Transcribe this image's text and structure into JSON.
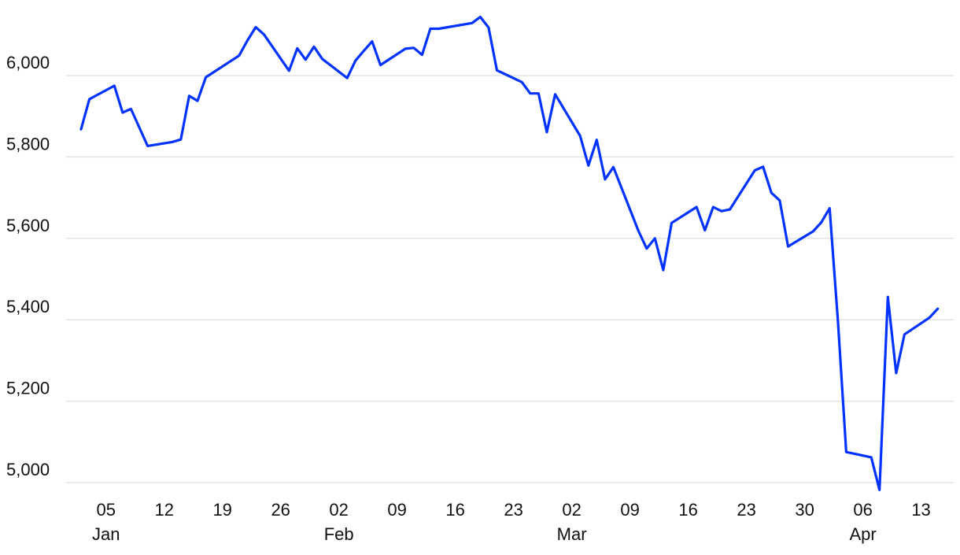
{
  "chart_data": {
    "type": "line",
    "title": "",
    "xlabel": "",
    "ylabel": "",
    "ylim": [
      4970,
      6160
    ],
    "y_ticks": [
      5000,
      5200,
      5400,
      5600,
      5800,
      6000
    ],
    "y_tick_labels": [
      "5,000",
      "5,200",
      "5,400",
      "5,600",
      "5,800",
      "6,000"
    ],
    "x_ticks": [
      "2025-01-05",
      "2025-01-12",
      "2025-01-19",
      "2025-01-26",
      "2025-02-02",
      "2025-02-09",
      "2025-02-16",
      "2025-02-23",
      "2025-03-02",
      "2025-03-09",
      "2025-03-16",
      "2025-03-23",
      "2025-03-30",
      "2025-04-06",
      "2025-04-13"
    ],
    "x_tick_labels": [
      "05",
      "12",
      "19",
      "26",
      "02",
      "09",
      "16",
      "23",
      "02",
      "09",
      "16",
      "23",
      "30",
      "06",
      "13"
    ],
    "month_labels": [
      {
        "date": "2025-01-05",
        "label": "Jan"
      },
      {
        "date": "2025-02-02",
        "label": "Feb"
      },
      {
        "date": "2025-03-02",
        "label": "Mar"
      },
      {
        "date": "2025-04-06",
        "label": "Apr"
      }
    ],
    "grid": "horizontal",
    "line_color": "#0033ff",
    "series": [
      {
        "x": [
          "2025-01-02",
          "2025-01-03",
          "2025-01-06",
          "2025-01-07",
          "2025-01-08",
          "2025-01-10",
          "2025-01-13",
          "2025-01-14",
          "2025-01-15",
          "2025-01-16",
          "2025-01-17",
          "2025-01-21",
          "2025-01-22",
          "2025-01-23",
          "2025-01-24",
          "2025-01-27",
          "2025-01-28",
          "2025-01-29",
          "2025-01-30",
          "2025-01-31",
          "2025-02-03",
          "2025-02-04",
          "2025-02-05",
          "2025-02-06",
          "2025-02-07",
          "2025-02-10",
          "2025-02-11",
          "2025-02-12",
          "2025-02-13",
          "2025-02-14",
          "2025-02-18",
          "2025-02-19",
          "2025-02-20",
          "2025-02-21",
          "2025-02-24",
          "2025-02-25",
          "2025-02-26",
          "2025-02-27",
          "2025-02-28",
          "2025-03-03",
          "2025-03-04",
          "2025-03-05",
          "2025-03-06",
          "2025-03-07",
          "2025-03-10",
          "2025-03-11",
          "2025-03-12",
          "2025-03-13",
          "2025-03-14",
          "2025-03-17",
          "2025-03-18",
          "2025-03-19",
          "2025-03-20",
          "2025-03-21",
          "2025-03-24",
          "2025-03-25",
          "2025-03-26",
          "2025-03-27",
          "2025-03-28",
          "2025-03-31",
          "2025-04-01",
          "2025-04-02",
          "2025-04-03",
          "2025-04-04",
          "2025-04-07",
          "2025-04-08",
          "2025-04-09",
          "2025-04-10",
          "2025-04-11",
          "2025-04-14",
          "2025-04-15"
        ],
        "values": [
          5868,
          5942,
          5975,
          5909,
          5918,
          5827,
          5837,
          5843,
          5950,
          5938,
          5996,
          6049,
          6086,
          6119,
          6101,
          6012,
          6067,
          6039,
          6071,
          6041,
          5994,
          6037,
          6061,
          6084,
          6026,
          6066,
          6068,
          6051,
          6115,
          6115,
          6129,
          6144,
          6118,
          6013,
          5984,
          5956,
          5956,
          5861,
          5954,
          5852,
          5779,
          5842,
          5745,
          5775,
          5619,
          5575,
          5600,
          5522,
          5638,
          5677,
          5620,
          5677,
          5667,
          5671,
          5767,
          5776,
          5712,
          5693,
          5580,
          5617,
          5639,
          5674,
          5396,
          5075,
          5062,
          4982,
          5456,
          5269,
          5364,
          5405,
          5427
        ]
      }
    ]
  }
}
